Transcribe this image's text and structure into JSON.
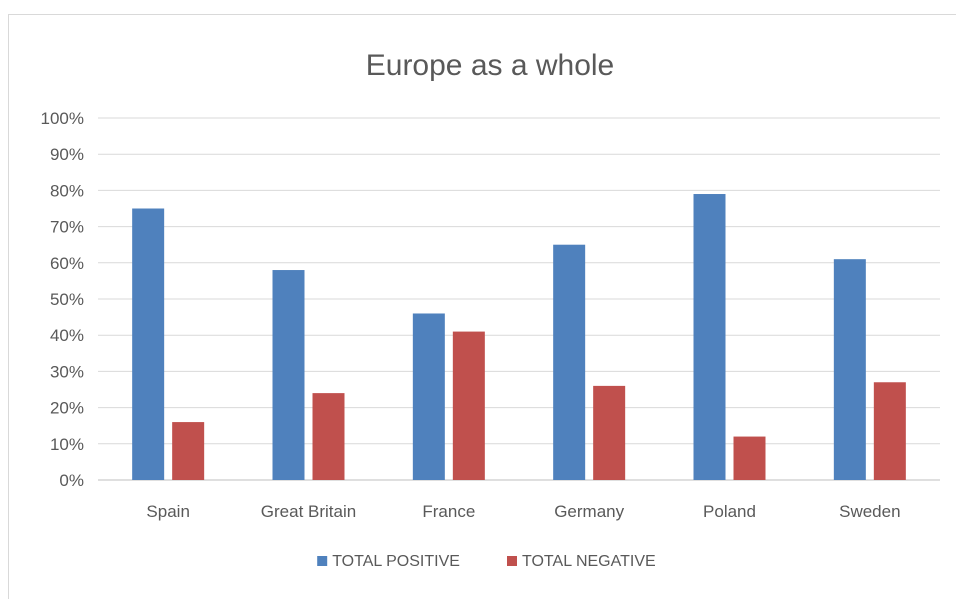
{
  "chart_data": {
    "type": "bar",
    "title": "Europe as a whole",
    "categories": [
      "Spain",
      "Great Britain",
      "France",
      "Germany",
      "Poland",
      "Sweden"
    ],
    "series": [
      {
        "name": "TOTAL POSITIVE",
        "color": "#4f81bd",
        "values": [
          75,
          58,
          46,
          65,
          79,
          61
        ]
      },
      {
        "name": "TOTAL NEGATIVE",
        "color": "#c0504d",
        "values": [
          16,
          24,
          41,
          26,
          12,
          27
        ]
      }
    ],
    "yticks": [
      "0%",
      "10%",
      "20%",
      "30%",
      "40%",
      "50%",
      "60%",
      "70%",
      "80%",
      "90%",
      "100%"
    ],
    "ylim": [
      0,
      100
    ],
    "grid": true,
    "legend_position": "bottom"
  }
}
